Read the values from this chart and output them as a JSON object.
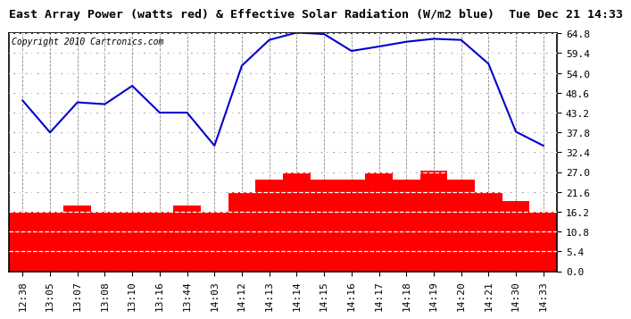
{
  "title": "East Array Power (watts red) & Effective Solar Radiation (W/m2 blue)  Tue Dec 21 14:33",
  "copyright": "Copyright 2010 Cartronics.com",
  "x_labels": [
    "12:38",
    "13:05",
    "13:07",
    "13:08",
    "13:10",
    "13:16",
    "13:44",
    "14:03",
    "14:12",
    "14:13",
    "14:14",
    "14:15",
    "14:16",
    "14:17",
    "14:18",
    "14:19",
    "14:20",
    "14:21",
    "14:30",
    "14:33"
  ],
  "blue_line_values": [
    46.5,
    37.8,
    46.0,
    45.5,
    50.5,
    43.2,
    43.2,
    34.2,
    56.0,
    63.0,
    65.0,
    64.6,
    60.0,
    61.2,
    62.5,
    63.3,
    63.0,
    56.5,
    38.0,
    34.2
  ],
  "red_bar_values": [
    16.2,
    16.2,
    18.0,
    16.2,
    16.2,
    16.2,
    18.0,
    16.2,
    21.6,
    25.0,
    27.0,
    25.0,
    25.0,
    27.0,
    25.0,
    27.5,
    25.0,
    21.6,
    19.0,
    16.2
  ],
  "y_ticks": [
    0.0,
    5.4,
    10.8,
    16.2,
    21.6,
    27.0,
    32.4,
    37.8,
    43.2,
    48.6,
    54.0,
    59.4,
    64.8
  ],
  "ymin": 0.0,
  "ymax": 64.8,
  "bar_color": "#FF0000",
  "line_color": "#0000CC",
  "bg_color": "#FFFFFF",
  "grid_color": "#888888",
  "title_fontsize": 9.5,
  "copyright_fontsize": 7,
  "tick_fontsize": 8,
  "bar_width": 1.0
}
